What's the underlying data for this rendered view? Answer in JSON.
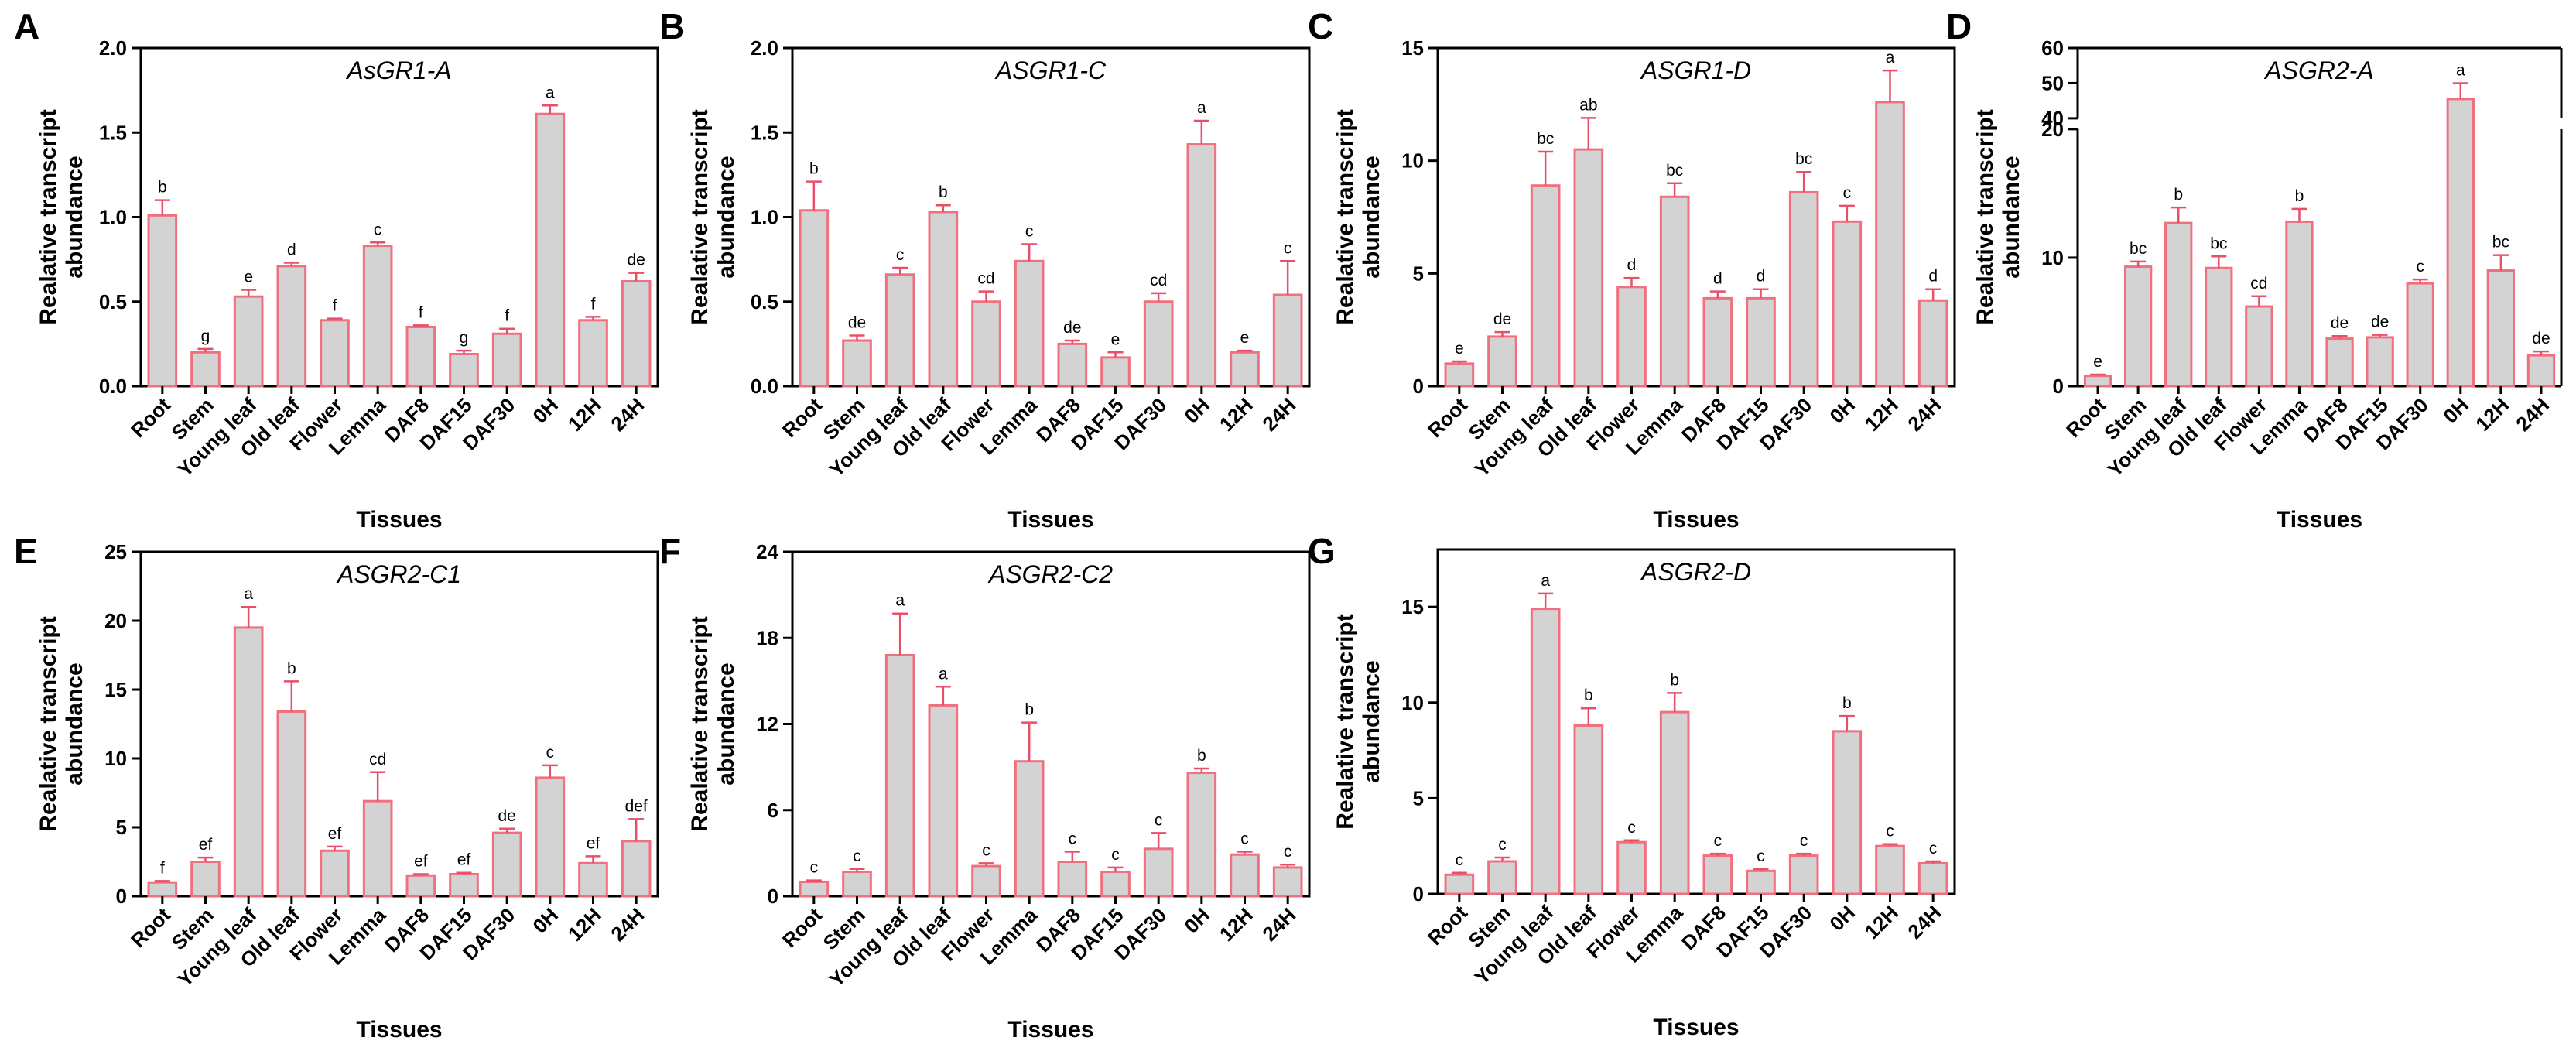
{
  "figure": {
    "colors": {
      "bar_fill": "#d3d3d3",
      "bar_stroke": "#f07080",
      "error": "#e8506a",
      "axis": "#000000"
    }
  },
  "chart_data": [
    {
      "panel": "A",
      "type": "bar",
      "title": "AsGR1-A",
      "ylabel": "Realative transcript abundance",
      "xlabel": "Tissues",
      "categories": [
        "Root",
        "Stem",
        "Young leaf",
        "Old leaf",
        "Flower",
        "Lemma",
        "DAF8",
        "DAF15",
        "DAF30",
        "0H",
        "12H",
        "24H"
      ],
      "values": [
        1.01,
        0.2,
        0.53,
        0.71,
        0.39,
        0.83,
        0.35,
        0.19,
        0.31,
        1.61,
        0.39,
        0.62
      ],
      "errors": [
        0.09,
        0.02,
        0.04,
        0.02,
        0.01,
        0.02,
        0.01,
        0.02,
        0.03,
        0.05,
        0.02,
        0.05
      ],
      "letters": [
        "b",
        "g",
        "e",
        "d",
        "f",
        "c",
        "f",
        "g",
        "f",
        "a",
        "f",
        "de"
      ],
      "ylim": [
        0,
        2.0
      ],
      "yticks": [
        0,
        0.5,
        1.0,
        1.5,
        2.0
      ],
      "ytick_labels": [
        "0.0",
        "0.5",
        "1.0",
        "1.5",
        "2.0"
      ]
    },
    {
      "panel": "B",
      "type": "bar",
      "title": "ASGR1-C",
      "ylabel": "Realative transcript abundance",
      "xlabel": "Tissues",
      "categories": [
        "Root",
        "Stem",
        "Young leaf",
        "Old leaf",
        "Flower",
        "Lemma",
        "DAF8",
        "DAF15",
        "DAF30",
        "0H",
        "12H",
        "24H"
      ],
      "values": [
        1.04,
        0.27,
        0.66,
        1.03,
        0.5,
        0.74,
        0.25,
        0.17,
        0.5,
        1.43,
        0.2,
        0.54
      ],
      "errors": [
        0.17,
        0.03,
        0.04,
        0.04,
        0.06,
        0.1,
        0.02,
        0.03,
        0.05,
        0.14,
        0.01,
        0.2
      ],
      "letters": [
        "b",
        "de",
        "c",
        "b",
        "cd",
        "c",
        "de",
        "e",
        "cd",
        "a",
        "e",
        "c"
      ],
      "ylim": [
        0,
        2.0
      ],
      "yticks": [
        0,
        0.5,
        1.0,
        1.5,
        2.0
      ],
      "ytick_labels": [
        "0.0",
        "0.5",
        "1.0",
        "1.5",
        "2.0"
      ]
    },
    {
      "panel": "C",
      "type": "bar",
      "title": "ASGR1-D",
      "ylabel": "Realative transcript abundance",
      "xlabel": "Tissues",
      "categories": [
        "Root",
        "Stem",
        "Young leaf",
        "Old leaf",
        "Flower",
        "Lemma",
        "DAF8",
        "DAF15",
        "DAF30",
        "0H",
        "12H",
        "24H"
      ],
      "values": [
        1.0,
        2.2,
        8.9,
        10.5,
        4.4,
        8.4,
        3.9,
        3.9,
        8.6,
        7.3,
        12.6,
        3.8
      ],
      "errors": [
        0.1,
        0.2,
        1.5,
        1.4,
        0.4,
        0.6,
        0.3,
        0.4,
        0.9,
        0.7,
        1.4,
        0.5
      ],
      "letters": [
        "e",
        "de",
        "bc",
        "ab",
        "d",
        "bc",
        "d",
        "d",
        "bc",
        "c",
        "a",
        "d"
      ],
      "ylim": [
        0,
        15
      ],
      "yticks": [
        0,
        5,
        10,
        15
      ],
      "ytick_labels": [
        "0",
        "5",
        "10",
        "15"
      ]
    },
    {
      "panel": "D",
      "type": "bar",
      "title": "ASGR2-A",
      "ylabel": "Realative transcript abundance",
      "xlabel": "Tissues",
      "categories": [
        "Root",
        "Stem",
        "Young leaf",
        "Old leaf",
        "Flower",
        "Lemma",
        "DAF8",
        "DAF15",
        "DAF30",
        "0H",
        "12H",
        "24H"
      ],
      "values": [
        0.8,
        9.3,
        12.7,
        9.2,
        6.2,
        12.8,
        3.7,
        3.8,
        8.0,
        45.5,
        9.0,
        2.4
      ],
      "errors": [
        0.1,
        0.4,
        1.2,
        0.9,
        0.8,
        1.0,
        0.2,
        0.2,
        0.3,
        4.5,
        1.2,
        0.3
      ],
      "letters": [
        "e",
        "bc",
        "b",
        "bc",
        "cd",
        "b",
        "de",
        "de",
        "c",
        "a",
        "bc",
        "de"
      ],
      "broken_axis": true,
      "lower_range": [
        0,
        20
      ],
      "upper_range": [
        40,
        60
      ],
      "yticks": [
        0,
        10,
        20,
        40,
        50,
        60
      ],
      "ytick_labels": [
        "0",
        "10",
        "20",
        "40",
        "50",
        "60"
      ]
    },
    {
      "panel": "E",
      "type": "bar",
      "title": "ASGR2-C1",
      "ylabel": "Realative transcript abundance",
      "xlabel": "Tissues",
      "categories": [
        "Root",
        "Stem",
        "Young leaf",
        "Old leaf",
        "Flower",
        "Lemma",
        "DAF8",
        "DAF15",
        "DAF30",
        "0H",
        "12H",
        "24H"
      ],
      "values": [
        1.0,
        2.5,
        19.5,
        13.4,
        3.3,
        6.9,
        1.5,
        1.6,
        4.6,
        8.6,
        2.4,
        4.0
      ],
      "errors": [
        0.1,
        0.3,
        1.5,
        2.2,
        0.3,
        2.1,
        0.1,
        0.1,
        0.3,
        0.9,
        0.5,
        1.6
      ],
      "letters": [
        "f",
        "ef",
        "a",
        "b",
        "ef",
        "cd",
        "ef",
        "ef",
        "de",
        "c",
        "ef",
        "def"
      ],
      "ylim": [
        0,
        25
      ],
      "yticks": [
        0,
        5,
        10,
        15,
        20,
        25
      ],
      "ytick_labels": [
        "0",
        "5",
        "10",
        "15",
        "20",
        "25"
      ]
    },
    {
      "panel": "F",
      "type": "bar",
      "title": "ASGR2-C2",
      "ylabel": "Realative transcript abundance",
      "xlabel": "Tissues",
      "categories": [
        "Root",
        "Stem",
        "Young leaf",
        "Old leaf",
        "Flower",
        "Lemma",
        "DAF8",
        "DAF15",
        "DAF30",
        "0H",
        "12H",
        "24H"
      ],
      "values": [
        1.0,
        1.7,
        16.8,
        13.3,
        2.1,
        9.4,
        2.4,
        1.7,
        3.3,
        8.6,
        2.9,
        2.0
      ],
      "errors": [
        0.1,
        0.2,
        2.9,
        1.3,
        0.2,
        2.7,
        0.7,
        0.3,
        1.1,
        0.3,
        0.2,
        0.2
      ],
      "letters": [
        "c",
        "c",
        "a",
        "a",
        "c",
        "b",
        "c",
        "c",
        "c",
        "b",
        "c",
        "c"
      ],
      "ylim": [
        0,
        24
      ],
      "yticks": [
        0,
        6,
        12,
        18,
        24
      ],
      "ytick_labels": [
        "0",
        "6",
        "12",
        "18",
        "24"
      ]
    },
    {
      "panel": "G",
      "type": "bar",
      "title": "ASGR2-D",
      "ylabel": "Realative transcript abundance",
      "xlabel": "Tissues",
      "categories": [
        "Root",
        "Stem",
        "Young leaf",
        "Old leaf",
        "Flower",
        "Lemma",
        "DAF8",
        "DAF15",
        "DAF30",
        "0H",
        "12H",
        "24H"
      ],
      "values": [
        1.0,
        1.7,
        14.9,
        8.8,
        2.7,
        9.5,
        2.0,
        1.2,
        2.0,
        8.5,
        2.5,
        1.6
      ],
      "errors": [
        0.1,
        0.2,
        0.8,
        0.9,
        0.1,
        1.0,
        0.1,
        0.1,
        0.1,
        0.8,
        0.1,
        0.1
      ],
      "letters": [
        "c",
        "c",
        "a",
        "b",
        "c",
        "b",
        "c",
        "c",
        "c",
        "b",
        "c",
        "c"
      ],
      "ylim": [
        0,
        18
      ],
      "yticks": [
        0,
        5,
        10,
        15
      ],
      "ytick_labels": [
        "0",
        "5",
        "10",
        "15"
      ]
    }
  ]
}
